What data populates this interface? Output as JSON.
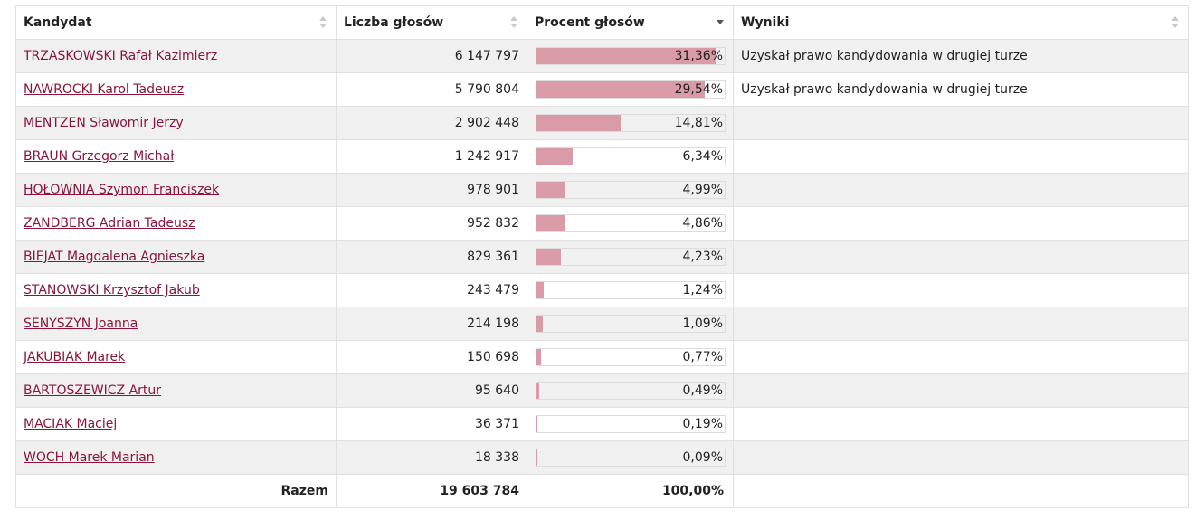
{
  "headers": {
    "candidate": "Kandydat",
    "votes": "Liczba głosów",
    "percent": "Procent głosów",
    "results": "Wyniki"
  },
  "sorted_column": "percent",
  "bar_color": "#d99ba8",
  "link_color": "#8b1538",
  "rows": [
    {
      "name": "TRZASKOWSKI Rafał Kazimierz",
      "votes": "6 147 797",
      "percent": "31,36%",
      "pct_value": 31.36,
      "result": "Uzyskał prawo kandydowania w drugiej turze"
    },
    {
      "name": "NAWROCKI Karol Tadeusz",
      "votes": "5 790 804",
      "percent": "29,54%",
      "pct_value": 29.54,
      "result": "Uzyskał prawo kandydowania w drugiej turze"
    },
    {
      "name": "MENTZEN Sławomir Jerzy",
      "votes": "2 902 448",
      "percent": "14,81%",
      "pct_value": 14.81,
      "result": ""
    },
    {
      "name": "BRAUN Grzegorz Michał",
      "votes": "1 242 917",
      "percent": "6,34%",
      "pct_value": 6.34,
      "result": ""
    },
    {
      "name": "HOŁOWNIA Szymon Franciszek",
      "votes": "978 901",
      "percent": "4,99%",
      "pct_value": 4.99,
      "result": ""
    },
    {
      "name": "ZANDBERG Adrian Tadeusz",
      "votes": "952 832",
      "percent": "4,86%",
      "pct_value": 4.86,
      "result": ""
    },
    {
      "name": "BIEJAT Magdalena Agnieszka",
      "votes": "829 361",
      "percent": "4,23%",
      "pct_value": 4.23,
      "result": ""
    },
    {
      "name": "STANOWSKI Krzysztof Jakub",
      "votes": "243 479",
      "percent": "1,24%",
      "pct_value": 1.24,
      "result": ""
    },
    {
      "name": "SENYSZYN Joanna",
      "votes": "214 198",
      "percent": "1,09%",
      "pct_value": 1.09,
      "result": ""
    },
    {
      "name": "JAKUBIAK Marek",
      "votes": "150 698",
      "percent": "0,77%",
      "pct_value": 0.77,
      "result": ""
    },
    {
      "name": "BARTOSZEWICZ Artur",
      "votes": "95 640",
      "percent": "0,49%",
      "pct_value": 0.49,
      "result": ""
    },
    {
      "name": "MACIAK Maciej",
      "votes": "36 371",
      "percent": "0,19%",
      "pct_value": 0.19,
      "result": ""
    },
    {
      "name": "WOCH Marek Marian",
      "votes": "18 338",
      "percent": "0,09%",
      "pct_value": 0.09,
      "result": ""
    }
  ],
  "total": {
    "label": "Razem",
    "votes": "19 603 784",
    "percent": "100,00%"
  }
}
